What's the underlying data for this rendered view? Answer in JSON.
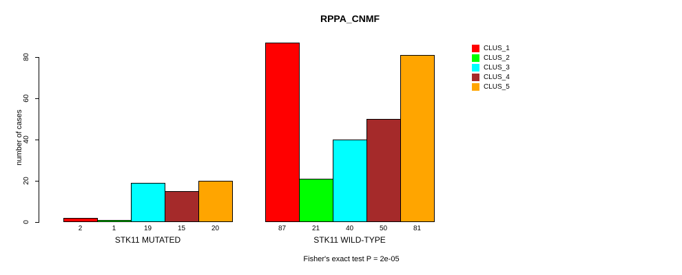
{
  "chart_data": {
    "type": "bar",
    "title": "RPPA_CNMF",
    "ylabel": "number of cases",
    "xlabel": "",
    "ylim": [
      0,
      87
    ],
    "yticks": [
      0,
      20,
      40,
      60,
      80
    ],
    "grid": false,
    "legend_position": "right",
    "annotation": "Fisher's exact test P = 2e-05",
    "clusters": [
      {
        "name": "CLUS_1",
        "color": "#FF0000"
      },
      {
        "name": "CLUS_2",
        "color": "#00FF00"
      },
      {
        "name": "CLUS_3",
        "color": "#00FFFF"
      },
      {
        "name": "CLUS_4",
        "color": "#A52A2A"
      },
      {
        "name": "CLUS_5",
        "color": "#FFA500"
      }
    ],
    "categories": [
      "STK11 MUTATED",
      "STK11 WILD-TYPE"
    ],
    "groups": [
      {
        "label": "STK11 MUTATED",
        "values": [
          2,
          1,
          19,
          15,
          20
        ]
      },
      {
        "label": "STK11 WILD-TYPE",
        "values": [
          87,
          21,
          40,
          50,
          81
        ]
      }
    ]
  }
}
